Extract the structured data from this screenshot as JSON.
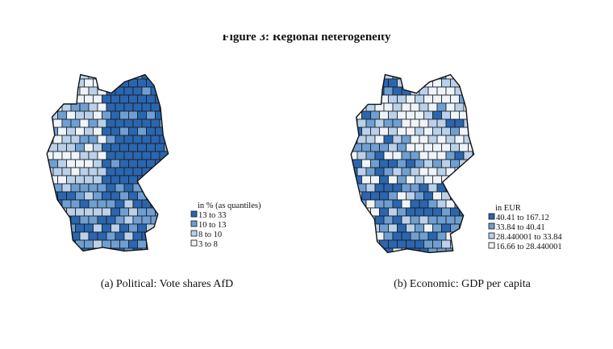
{
  "title": "Figure 3: Regional heterogeneity",
  "panels": [
    {
      "caption": "(a) Political: Vote shares AfD",
      "legend": {
        "title": "in % (as quantiles)",
        "items": [
          {
            "label": "13 to 33",
            "color": "#2a66b0"
          },
          {
            "label": "10 to 13",
            "color": "#6e9fd2"
          },
          {
            "label": "8 to 10",
            "color": "#b9d1ea"
          },
          {
            "label": "3 to 8",
            "color": "#eef4fb"
          }
        ]
      }
    },
    {
      "caption": "(b) Economic: GDP per capita",
      "legend": {
        "title": "in EUR",
        "items": [
          {
            "label": "40.41 to 167.12",
            "color": "#2a66b0"
          },
          {
            "label": "33.84 to 40.41",
            "color": "#6e9fd2"
          },
          {
            "label": "28.440001 to 33.84",
            "color": "#b9d1ea"
          },
          {
            "label": "16.66 to 28.440001",
            "color": "#eef4fb"
          }
        ]
      }
    }
  ]
}
